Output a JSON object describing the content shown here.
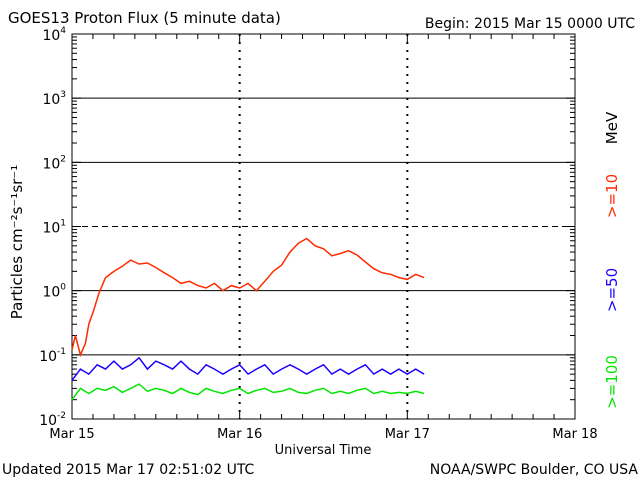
{
  "header": {
    "title": "GOES13 Proton Flux (5 minute data)",
    "begin": "Begin: 2015 Mar 15 0000 UTC"
  },
  "footer": {
    "updated": "Updated 2015 Mar 17 02:51:02 UTC",
    "source": "NOAA/SWPC Boulder, CO USA"
  },
  "colors": {
    "gt10": "#ff2a00",
    "gt50": "#1a00ff",
    "gt100": "#00e600",
    "grid": "#000000"
  },
  "chart_data": {
    "type": "line",
    "title": "GOES13 Proton Flux (5 minute data)",
    "xlabel": "Universal Time",
    "ylabel": "Particles cm⁻²s⁻¹sr⁻¹",
    "yscale": "log",
    "ylim": [
      0.01,
      10000
    ],
    "xlim": [
      0,
      3
    ],
    "x_ticks": [
      {
        "value": 0,
        "label": "Mar 15"
      },
      {
        "value": 1,
        "label": "Mar 16"
      },
      {
        "value": 2,
        "label": "Mar 17"
      },
      {
        "value": 3,
        "label": "Mar 18"
      }
    ],
    "y_ticks": [
      {
        "value": 0.01,
        "base": "10",
        "exp": "-2"
      },
      {
        "value": 0.1,
        "base": "10",
        "exp": "-1"
      },
      {
        "value": 1,
        "base": "10",
        "exp": "0"
      },
      {
        "value": 10,
        "base": "10",
        "exp": "1"
      },
      {
        "value": 100,
        "base": "10",
        "exp": "2"
      },
      {
        "value": 1000,
        "base": "10",
        "exp": "3"
      },
      {
        "value": 10000,
        "base": "10",
        "exp": "4"
      }
    ],
    "legend_unit": "MeV",
    "thresholds": [
      {
        "value": 10,
        "style": "dashed"
      }
    ],
    "series": [
      {
        "name": ">=10",
        "color": "#ff2a00",
        "x": [
          0,
          0.02,
          0.05,
          0.08,
          0.1,
          0.13,
          0.16,
          0.2,
          0.25,
          0.3,
          0.35,
          0.4,
          0.45,
          0.5,
          0.55,
          0.6,
          0.65,
          0.7,
          0.75,
          0.8,
          0.85,
          0.9,
          0.95,
          1.0,
          1.05,
          1.1,
          1.15,
          1.2,
          1.25,
          1.3,
          1.35,
          1.4,
          1.45,
          1.5,
          1.55,
          1.6,
          1.65,
          1.7,
          1.75,
          1.8,
          1.85,
          1.9,
          1.95,
          2.0,
          2.05,
          2.1
        ],
        "values": [
          0.12,
          0.2,
          0.1,
          0.15,
          0.3,
          0.5,
          0.9,
          1.6,
          2.0,
          2.4,
          3.0,
          2.6,
          2.7,
          2.3,
          1.9,
          1.6,
          1.3,
          1.4,
          1.2,
          1.1,
          1.3,
          1.0,
          1.2,
          1.1,
          1.3,
          1.0,
          1.4,
          2.0,
          2.5,
          4.0,
          5.5,
          6.5,
          5.0,
          4.5,
          3.5,
          3.8,
          4.2,
          3.6,
          2.8,
          2.2,
          1.9,
          1.8,
          1.6,
          1.5,
          1.8,
          1.6
        ]
      },
      {
        "name": ">=50",
        "color": "#1a00ff",
        "x": [
          0,
          0.05,
          0.1,
          0.15,
          0.2,
          0.25,
          0.3,
          0.35,
          0.4,
          0.45,
          0.5,
          0.55,
          0.6,
          0.65,
          0.7,
          0.75,
          0.8,
          0.85,
          0.9,
          0.95,
          1.0,
          1.05,
          1.1,
          1.15,
          1.2,
          1.25,
          1.3,
          1.35,
          1.4,
          1.45,
          1.5,
          1.55,
          1.6,
          1.65,
          1.7,
          1.75,
          1.8,
          1.85,
          1.9,
          1.95,
          2.0,
          2.05,
          2.1
        ],
        "values": [
          0.04,
          0.06,
          0.05,
          0.07,
          0.06,
          0.08,
          0.06,
          0.07,
          0.09,
          0.06,
          0.08,
          0.07,
          0.06,
          0.08,
          0.06,
          0.05,
          0.07,
          0.06,
          0.05,
          0.06,
          0.07,
          0.05,
          0.06,
          0.07,
          0.05,
          0.06,
          0.07,
          0.06,
          0.05,
          0.06,
          0.07,
          0.05,
          0.06,
          0.05,
          0.06,
          0.07,
          0.05,
          0.06,
          0.05,
          0.06,
          0.05,
          0.06,
          0.05
        ]
      },
      {
        "name": ">=100",
        "color": "#00e600",
        "x": [
          0,
          0.05,
          0.1,
          0.15,
          0.2,
          0.25,
          0.3,
          0.35,
          0.4,
          0.45,
          0.5,
          0.55,
          0.6,
          0.65,
          0.7,
          0.75,
          0.8,
          0.85,
          0.9,
          0.95,
          1.0,
          1.05,
          1.1,
          1.15,
          1.2,
          1.25,
          1.3,
          1.35,
          1.4,
          1.45,
          1.5,
          1.55,
          1.6,
          1.65,
          1.7,
          1.75,
          1.8,
          1.85,
          1.9,
          1.95,
          2.0,
          2.05,
          2.1
        ],
        "values": [
          0.02,
          0.03,
          0.025,
          0.03,
          0.028,
          0.032,
          0.026,
          0.03,
          0.035,
          0.027,
          0.03,
          0.028,
          0.025,
          0.03,
          0.026,
          0.024,
          0.03,
          0.027,
          0.025,
          0.028,
          0.03,
          0.025,
          0.028,
          0.03,
          0.026,
          0.027,
          0.03,
          0.026,
          0.025,
          0.028,
          0.03,
          0.025,
          0.027,
          0.025,
          0.028,
          0.03,
          0.025,
          0.027,
          0.025,
          0.026,
          0.025,
          0.027,
          0.025
        ]
      }
    ]
  }
}
